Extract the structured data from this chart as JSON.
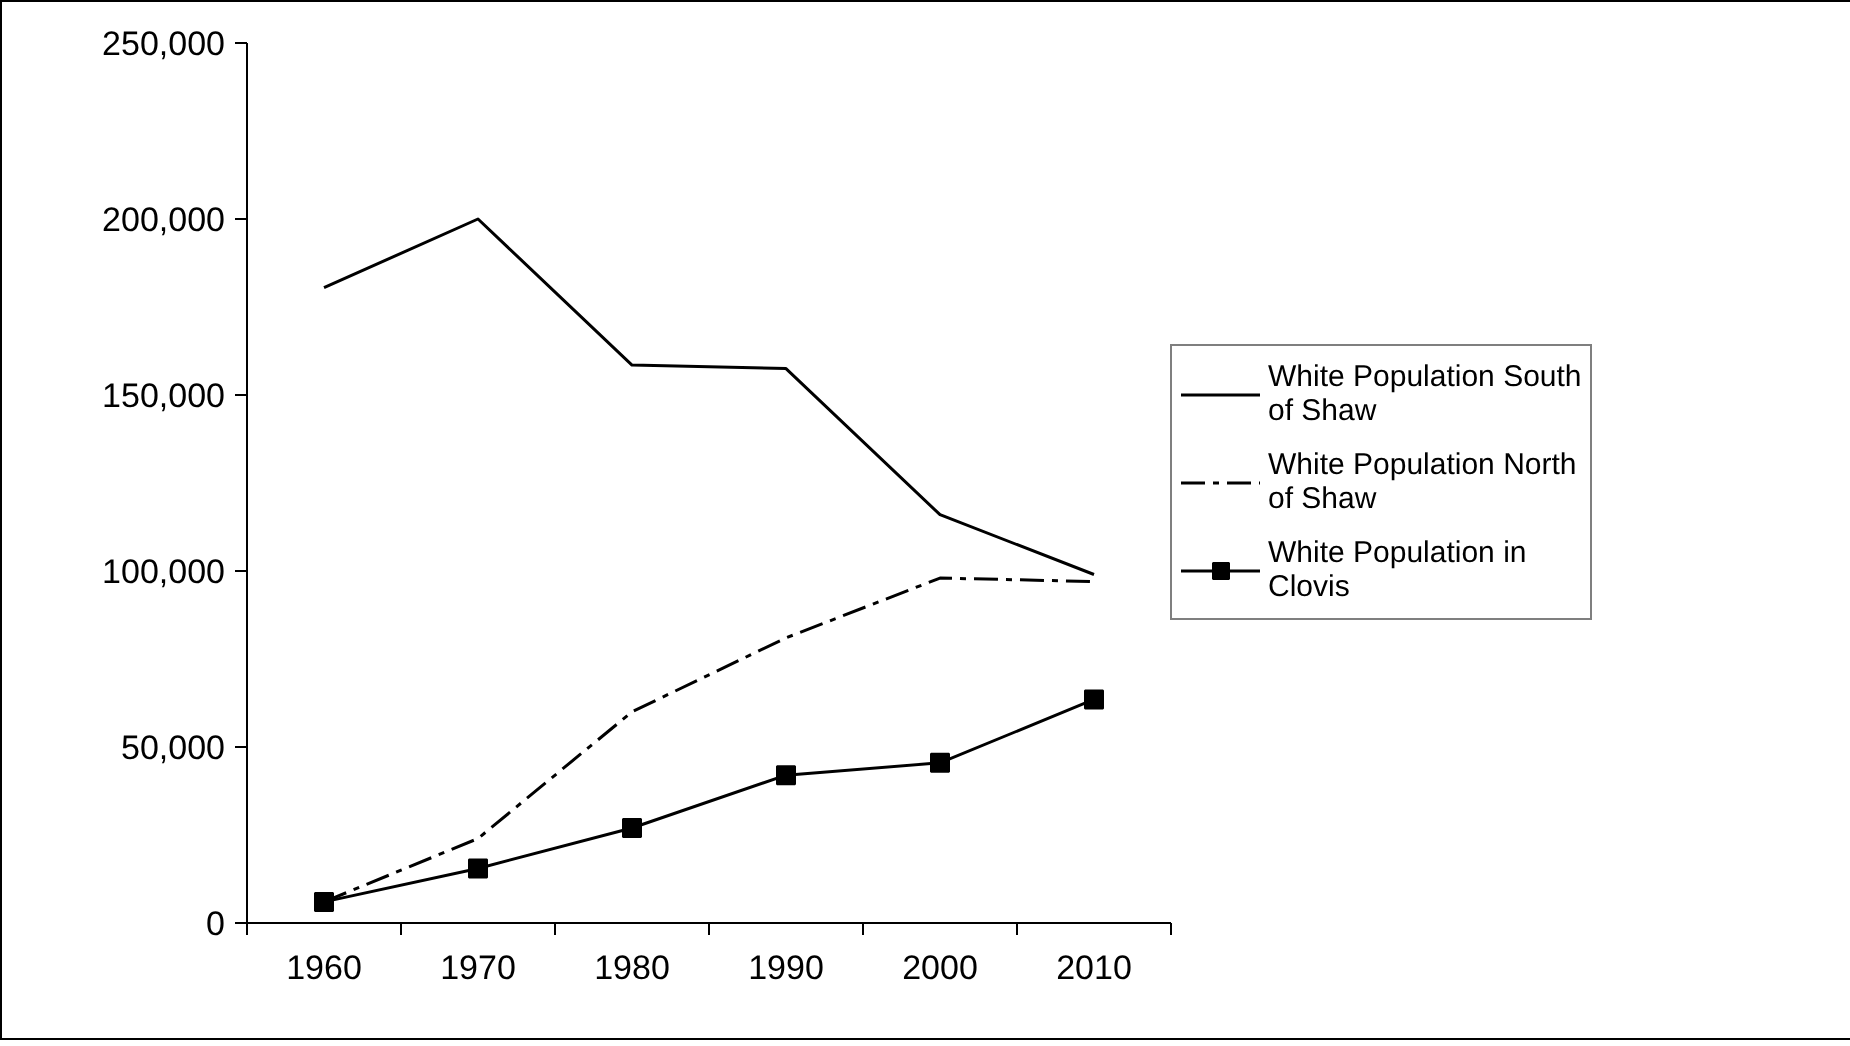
{
  "chart_data": {
    "type": "line",
    "categories": [
      "1960",
      "1970",
      "1980",
      "1990",
      "2000",
      "2010"
    ],
    "ylim": [
      0,
      250000
    ],
    "yticks": [
      {
        "value": 0,
        "label": "0"
      },
      {
        "value": 50000,
        "label": "50,000"
      },
      {
        "value": 100000,
        "label": "100,000"
      },
      {
        "value": 150000,
        "label": "150,000"
      },
      {
        "value": 200000,
        "label": "200,000"
      },
      {
        "value": 250000,
        "label": "250,000"
      }
    ],
    "grid": false,
    "legend": "right",
    "series": [
      {
        "name": "White Population South of Shaw",
        "color": "#000000",
        "line_style": "solid",
        "marker": "none",
        "values": [
          180500,
          200000,
          158500,
          157500,
          116000,
          99000
        ]
      },
      {
        "name": "White Population North of Shaw",
        "color": "#000000",
        "line_style": "dashdot",
        "marker": "none",
        "values": [
          6000,
          24000,
          60000,
          81000,
          98000,
          97000
        ]
      },
      {
        "name": "White Population in Clovis",
        "color": "#000000",
        "line_style": "solid",
        "marker": "square",
        "values": [
          6000,
          15500,
          27000,
          42000,
          45500,
          63500
        ]
      }
    ]
  }
}
